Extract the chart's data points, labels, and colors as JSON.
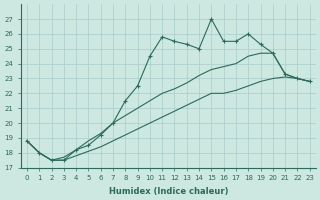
{
  "xlabel": "Humidex (Indice chaleur)",
  "bg_color": "#cce8e0",
  "grid_color": "#aacccc",
  "line_color": "#2a6b5a",
  "x_values": [
    0,
    1,
    2,
    3,
    4,
    5,
    6,
    7,
    8,
    9,
    10,
    11,
    12,
    13,
    14,
    15,
    16,
    17,
    18,
    19,
    20,
    21,
    22,
    23
  ],
  "y_jagged": [
    18.8,
    18.0,
    17.5,
    17.5,
    18.2,
    18.5,
    19.2,
    20.0,
    21.5,
    22.5,
    24.5,
    25.8,
    25.5,
    25.3,
    25.0,
    27.0,
    25.5,
    25.5,
    26.0,
    25.3,
    24.7,
    23.3,
    23.0,
    22.8
  ],
  "y_mid": [
    18.8,
    18.0,
    17.5,
    17.7,
    18.2,
    18.8,
    19.3,
    20.0,
    20.5,
    21.0,
    21.5,
    22.0,
    22.3,
    22.7,
    23.2,
    23.6,
    23.8,
    24.0,
    24.5,
    24.7,
    24.7,
    23.3,
    23.0,
    22.8
  ],
  "y_lower": [
    18.8,
    18.0,
    17.5,
    17.5,
    17.8,
    18.1,
    18.4,
    18.8,
    19.2,
    19.6,
    20.0,
    20.4,
    20.8,
    21.2,
    21.6,
    22.0,
    22.0,
    22.2,
    22.5,
    22.8,
    23.0,
    23.1,
    23.0,
    22.8
  ],
  "ylim_min": 17,
  "ylim_max": 28,
  "yticks": [
    17,
    18,
    19,
    20,
    21,
    22,
    23,
    24,
    25,
    26,
    27
  ],
  "fontsize_tick": 5,
  "fontsize_xlabel": 6
}
